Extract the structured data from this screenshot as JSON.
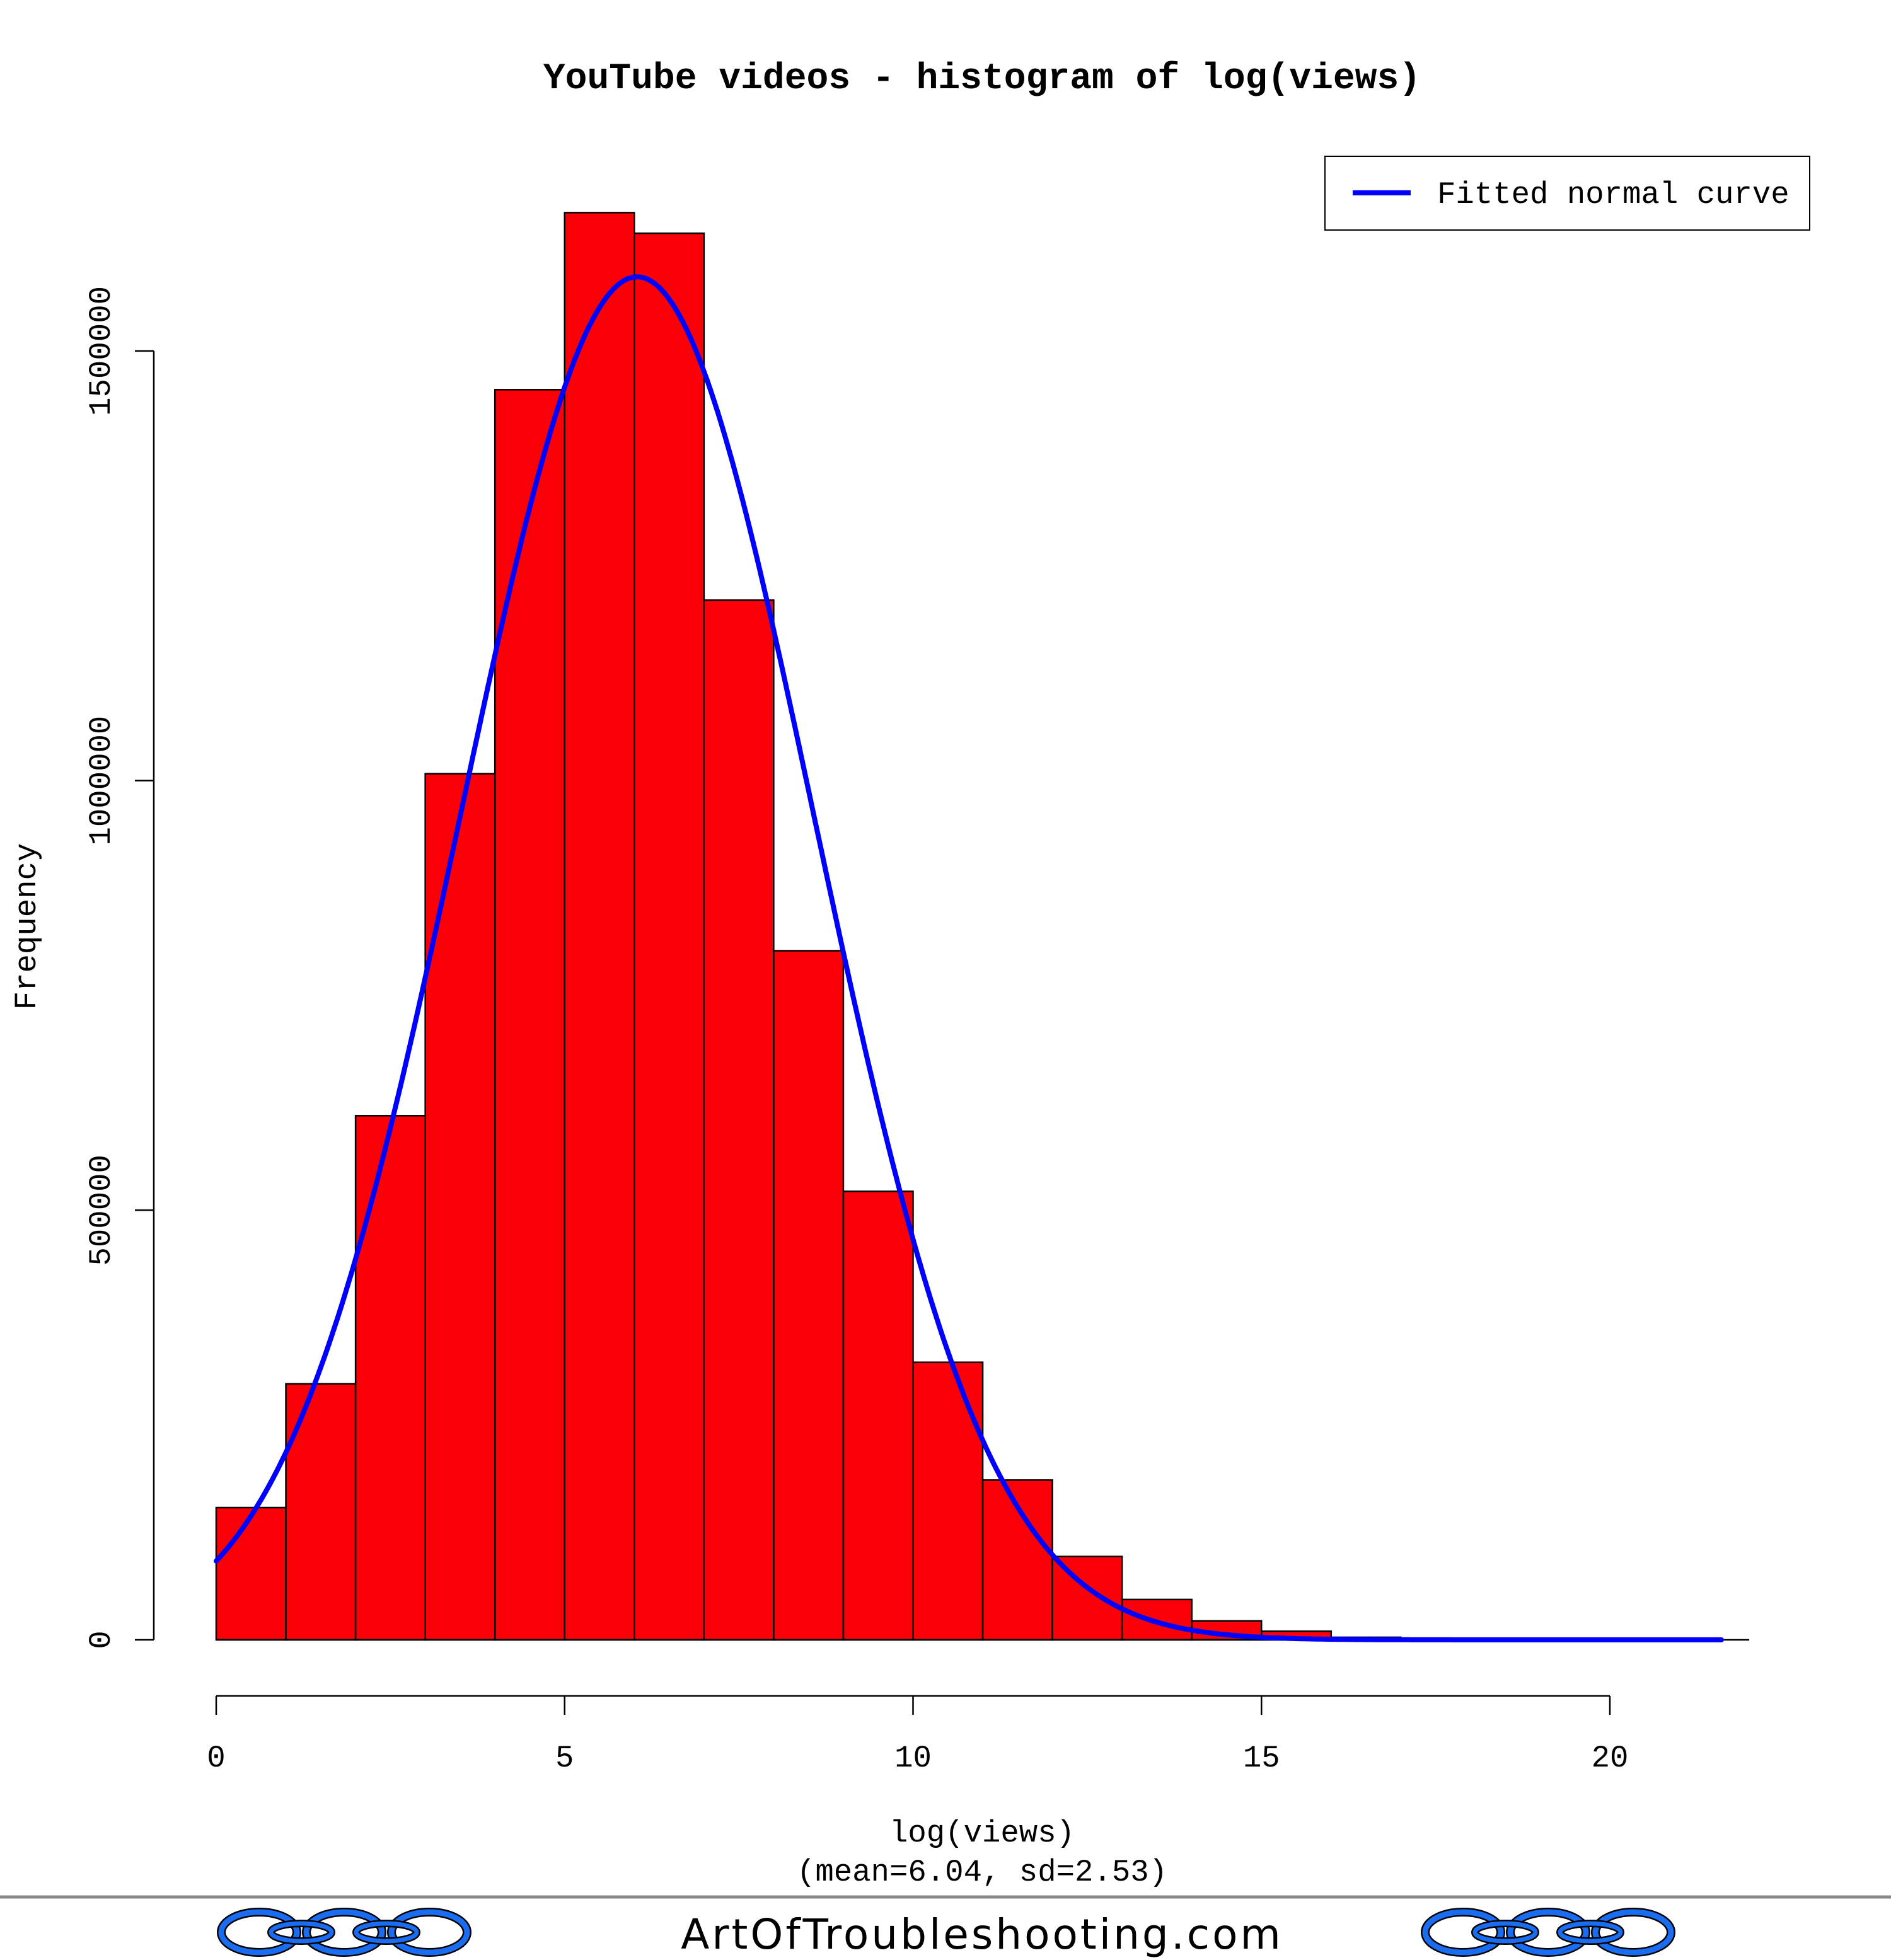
{
  "chart_data": {
    "type": "bar",
    "title": "YouTube videos - histogram of log(views)",
    "xlabel": "log(views)",
    "xsublabel": "(mean=6.04, sd=2.53)",
    "ylabel": "Frequency",
    "xlim": [
      0,
      22
    ],
    "ylim": [
      0,
      1650000
    ],
    "bin_width": 1,
    "bin_edges_start": 0,
    "values": [
      154000,
      298000,
      610000,
      1008000,
      1455000,
      1661000,
      1637000,
      1210000,
      802000,
      522000,
      323000,
      186000,
      97000,
      47000,
      22000,
      10000,
      3000,
      1000
    ],
    "x_ticks": [
      "0",
      "5",
      "10",
      "15",
      "20"
    ],
    "x_tick_values": [
      0,
      5,
      10,
      15,
      20
    ],
    "y_ticks": [
      "0",
      "500000",
      "1000000",
      "1500000"
    ],
    "y_tick_values": [
      0,
      500000,
      1000000,
      1500000
    ],
    "bar_color": "#fb0007",
    "curve": {
      "name": "Fitted normal curve",
      "mean": 6.04,
      "sd": 2.53,
      "scale_n": 10060000,
      "x_range": [
        0,
        21.6
      ],
      "color": "#0000ff"
    },
    "legend": {
      "label": "Fitted normal curve",
      "position": "top-right"
    },
    "grid": false
  },
  "footer": {
    "site": "ArtOfTroubleshooting.com",
    "icon": "chain-link-icon",
    "icon_color": "#1a6cf0"
  }
}
